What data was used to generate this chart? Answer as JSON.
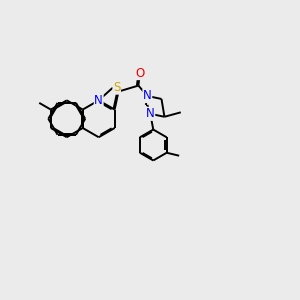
{
  "background_color": "#ebebeb",
  "atom_colors": {
    "N": "#0000ee",
    "O": "#ee0000",
    "S": "#ccaa00"
  },
  "line_color": "#000000",
  "line_width": 1.4,
  "font_size": 8.5
}
